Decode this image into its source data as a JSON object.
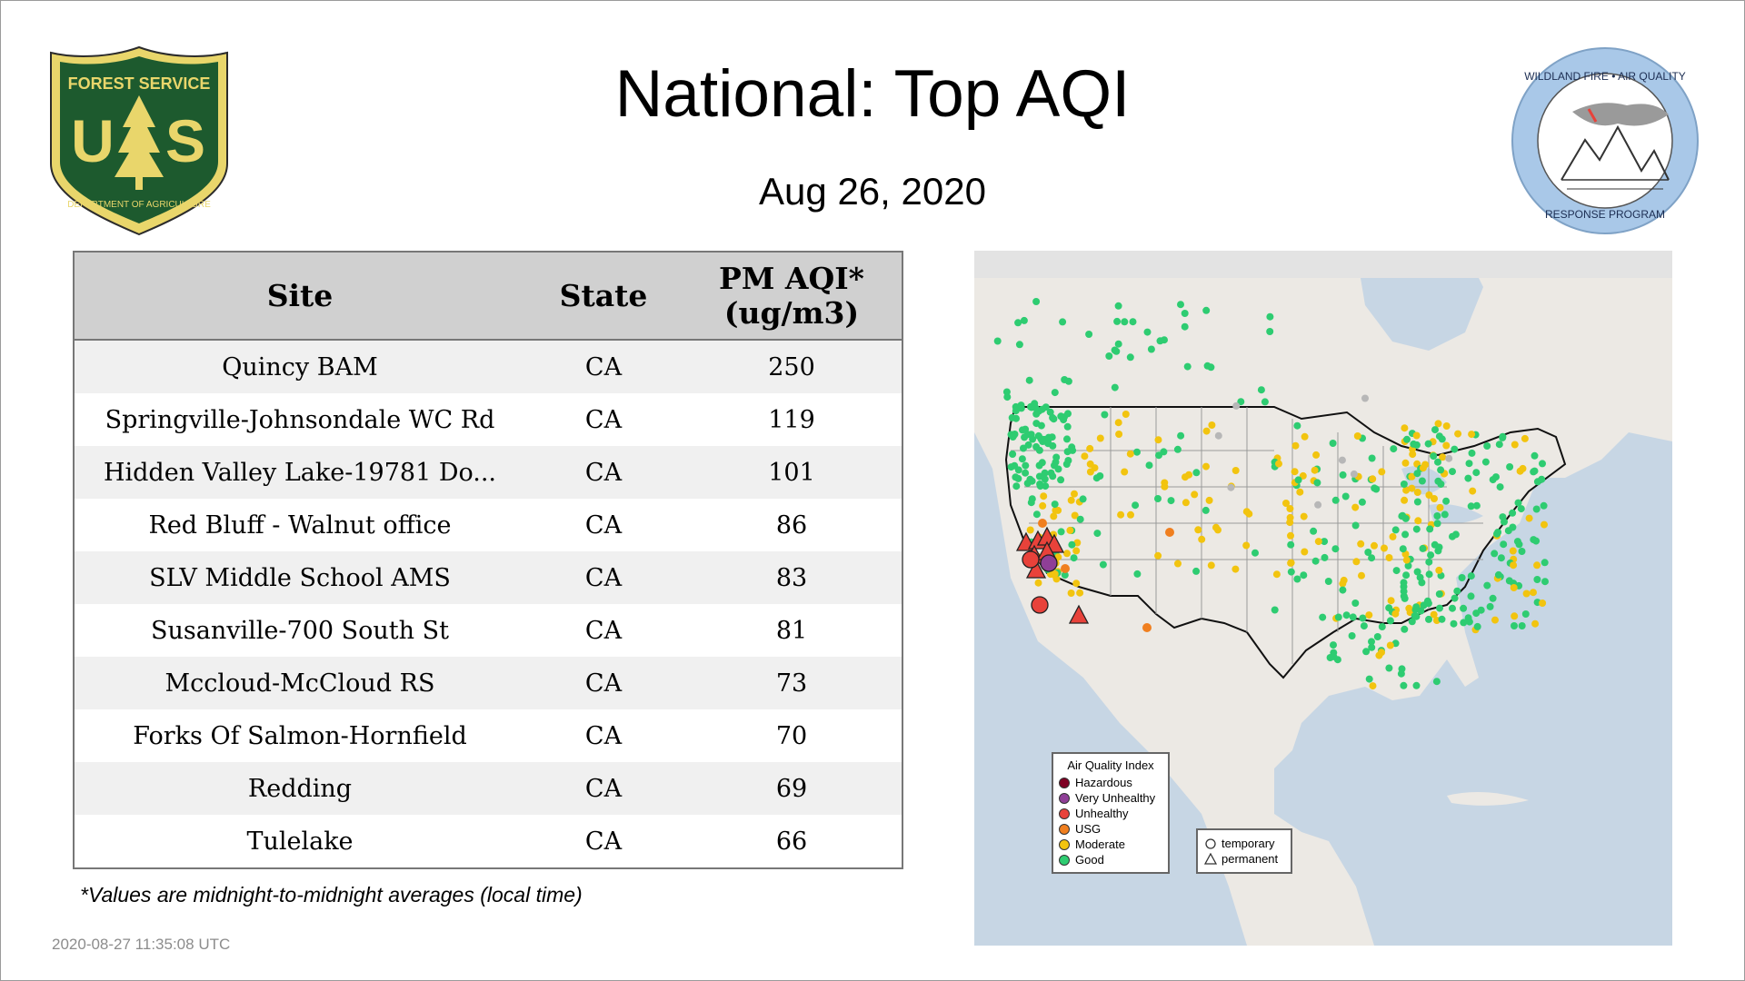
{
  "header": {
    "title": "National: Top AQI",
    "date": "Aug 26, 2020"
  },
  "logos": {
    "left": {
      "top_text": "FOREST SERVICE",
      "letters_left": "U",
      "letters_right": "S",
      "bottom_text": "DEPARTMENT OF AGRICULTURE"
    },
    "right": {
      "top_text": "WILDLAND FIRE • AIR QUALITY",
      "bottom_text": "RESPONSE PROGRAM"
    }
  },
  "table": {
    "headers": {
      "site": "Site",
      "state": "State",
      "value_line1": "PM AQI*",
      "value_line2": "(ug/m3)"
    },
    "rows": [
      {
        "site": "Quincy BAM",
        "state": "CA",
        "value": "250"
      },
      {
        "site": "Springville-Johnsondale WC Rd",
        "state": "CA",
        "value": "119"
      },
      {
        "site": "Hidden Valley Lake-19781 Do...",
        "state": "CA",
        "value": "101"
      },
      {
        "site": "Red Bluff - Walnut office",
        "state": "CA",
        "value": "86"
      },
      {
        "site": "SLV Middle School AMS",
        "state": "CA",
        "value": "83"
      },
      {
        "site": "Susanville-700 South St",
        "state": "CA",
        "value": "81"
      },
      {
        "site": "Mccloud-McCloud RS",
        "state": "CA",
        "value": "73"
      },
      {
        "site": "Forks Of Salmon-Hornfield",
        "state": "CA",
        "value": "70"
      },
      {
        "site": "Redding",
        "state": "CA",
        "value": "69"
      },
      {
        "site": "Tulelake",
        "state": "CA",
        "value": "66"
      }
    ]
  },
  "footnote": "*Values are midnight-to-midnight averages (local time)",
  "timestamp": "2020-08-27 11:35:08 UTC",
  "map": {
    "legend_aqi": {
      "title": "Air Quality Index",
      "items": [
        {
          "label": "Hazardous",
          "color": "#7e0023"
        },
        {
          "label": "Very Unhealthy",
          "color": "#8f3f97"
        },
        {
          "label": "Unhealthy",
          "color": "#e8423a"
        },
        {
          "label": "USG",
          "color": "#f07f1f"
        },
        {
          "label": "Moderate",
          "color": "#f2c40f"
        },
        {
          "label": "Good",
          "color": "#2ecc71"
        }
      ]
    },
    "legend_shape": {
      "items": [
        {
          "label": "temporary",
          "shape": "circle"
        },
        {
          "label": "permanent",
          "shape": "triangle"
        }
      ]
    },
    "colors": {
      "land": "#ece9e4",
      "water": "#c7d6e4",
      "border": "#111111"
    }
  }
}
